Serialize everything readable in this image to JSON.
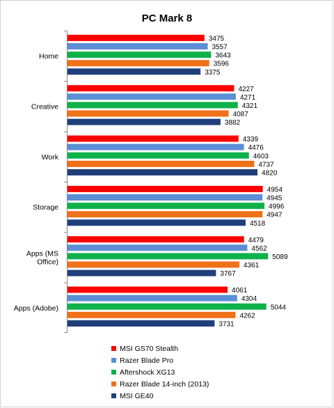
{
  "chart_data": {
    "type": "bar",
    "orientation": "horizontal",
    "title": "PC Mark 8",
    "categories": [
      "Home",
      "Creative",
      "Work",
      "Storage",
      "Apps (MS Office)",
      "Apps (Adobe)"
    ],
    "category_lines": [
      [
        "Home"
      ],
      [
        "Creative"
      ],
      [
        "Work"
      ],
      [
        "Storage"
      ],
      [
        "Apps (MS",
        "Office)"
      ],
      [
        "Apps (Adobe)"
      ]
    ],
    "series": [
      {
        "name": "MSI GS70 Stealth",
        "color": "#ff0000",
        "values": [
          3475,
          4227,
          4339,
          4954,
          4479,
          4061
        ]
      },
      {
        "name": "Razer Blade Pro",
        "color": "#5b8fd6",
        "values": [
          3557,
          4271,
          4476,
          4945,
          4562,
          4304
        ]
      },
      {
        "name": "Aftershock XG13",
        "color": "#0fb14b",
        "values": [
          3643,
          4321,
          4603,
          4996,
          5089,
          5044
        ]
      },
      {
        "name": "Razer Blade 14-inch (2013)",
        "color": "#ef7118",
        "values": [
          3596,
          4087,
          4737,
          4947,
          4361,
          4262
        ]
      },
      {
        "name": "MSI GE40",
        "color": "#1f3f7a",
        "values": [
          3375,
          3882,
          4820,
          4518,
          3767,
          3731
        ]
      }
    ],
    "xlim": [
      0,
      5400
    ],
    "grid": false,
    "legend_position": "bottom"
  }
}
